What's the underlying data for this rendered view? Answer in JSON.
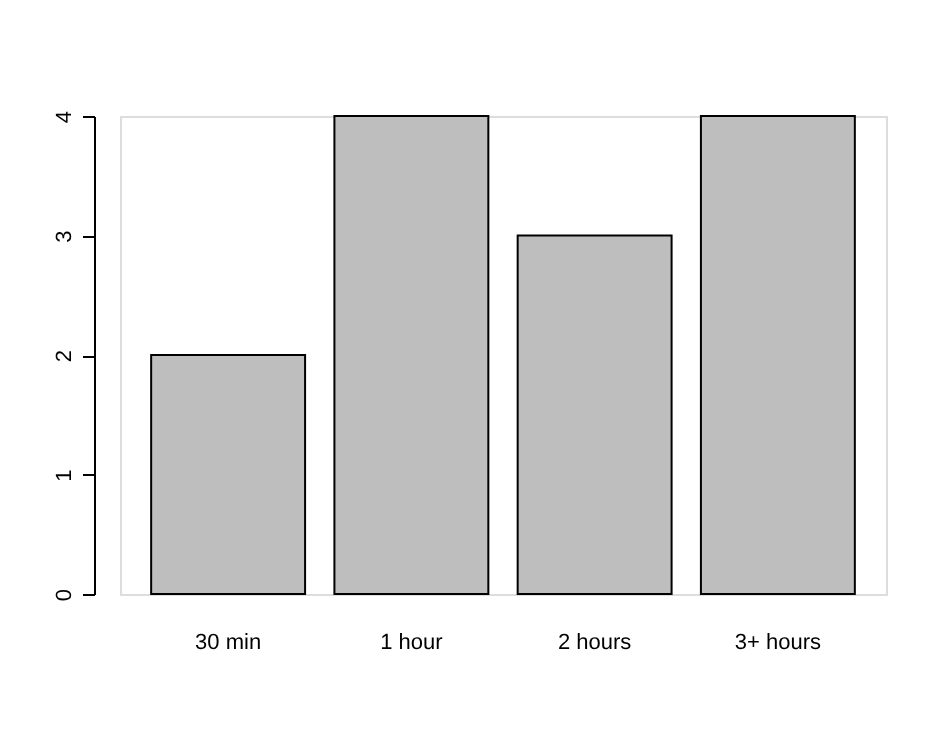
{
  "chart_data": {
    "type": "bar",
    "categories": [
      "30 min",
      "1 hour",
      "2 hours",
      "3+ hours"
    ],
    "values": [
      2,
      4,
      3,
      4
    ],
    "color": "#bebebe",
    "ylim": [
      0,
      4
    ],
    "yticks": [
      0,
      1,
      2,
      3,
      4
    ],
    "grid": false
  }
}
